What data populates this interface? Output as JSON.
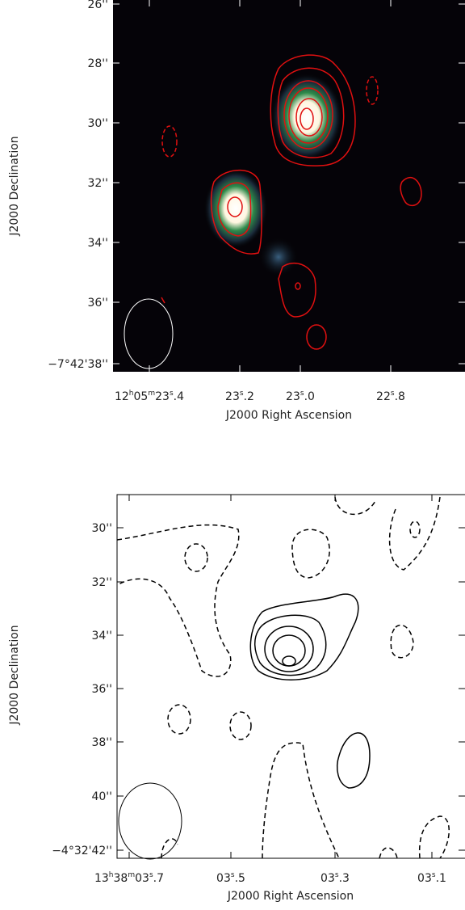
{
  "panels": [
    {
      "y_label": "J2000 Declination",
      "x_label": "J2000 Right Ascension",
      "y_tick_labels": [
        "26''",
        "28''",
        "30''",
        "32''",
        "34''",
        "36''",
        "−7°42'38''"
      ],
      "x_tick_labels": [
        "12h05m23s.4",
        "23s.2",
        "23s.0",
        "22s.8"
      ]
    },
    {
      "y_label": "J2000 Declination",
      "x_label": "J2000 Right Ascension",
      "y_tick_labels": [
        "30''",
        "32''",
        "34''",
        "36''",
        "38''",
        "40''",
        "−4°32'42''"
      ],
      "x_tick_labels": [
        "13h38m03s.7",
        "03s.5",
        "03s.3",
        "03s.1"
      ]
    }
  ]
}
